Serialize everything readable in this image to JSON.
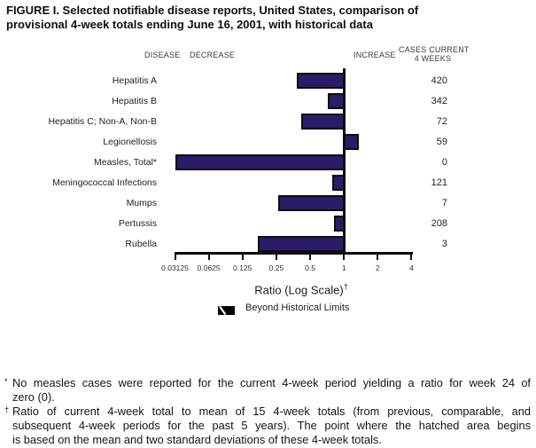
{
  "title": {
    "line1": "FIGURE I. Selected notifiable disease reports, United States, comparison of",
    "line2": "provisional 4-week totals ending June 16, 2001, with historical data"
  },
  "column_headers": {
    "disease": "DISEASE",
    "decrease": "DECREASE",
    "increase": "INCREASE",
    "cases_line1": "CASES CURRENT",
    "cases_line2": "4 WEEKS"
  },
  "chart_data": {
    "type": "bar",
    "orientation": "horizontal",
    "title": "FIGURE I. Selected notifiable disease reports, United States, comparison of provisional 4-week totals ending June 16, 2001, with historical data",
    "xlabel": "Ratio (Log Scale)",
    "xlabel_superscript": "†",
    "x_scale": "log2",
    "xlim": [
      0.03125,
      4
    ],
    "xticks": [
      0.03125,
      0.0625,
      0.125,
      0.25,
      0.5,
      1,
      2,
      4
    ],
    "xtick_labels": [
      "0.03125",
      "0.0625",
      "0.125",
      "0.25",
      "0.5",
      "1",
      "2",
      "4"
    ],
    "reference_line_x": 1,
    "grid": false,
    "categories": [
      "Hepatitis A",
      "Hepatitis B",
      "Hepatitis C; Non-A, Non-B",
      "Legionellosis",
      "Measles, Total*",
      "Meningococcal Infections",
      "Mumps",
      "Pertussis",
      "Rubella"
    ],
    "series": [
      {
        "name": "Ratio of current 4-week total to historical mean",
        "values": [
          0.38,
          0.72,
          0.42,
          1.3,
          0,
          0.78,
          0.26,
          0.81,
          0.17
        ]
      }
    ],
    "cases_current_4_weeks": [
      420,
      342,
      72,
      59,
      0,
      121,
      7,
      208,
      3
    ],
    "bar_color": "#2b1b69",
    "legend": {
      "label": "Beyond Historical Limits",
      "swatch": "black-box-with-white-diagonal-hatch",
      "position": "bottom"
    }
  },
  "legend": {
    "label": "Beyond Historical Limits"
  },
  "footnotes": [
    {
      "marker": "*",
      "lines": [
        "No measles cases were reported for the current 4-week period yielding a ratio for week 24 of",
        "zero (0)."
      ]
    },
    {
      "marker": "†",
      "lines": [
        "Ratio of current 4-week total to mean of 15 4-week totals (from previous, comparable, and",
        "subsequent 4-week periods for the past 5 years). The point where the hatched area begins",
        "is based on the mean and two standard deviations of these 4-week totals."
      ]
    }
  ]
}
